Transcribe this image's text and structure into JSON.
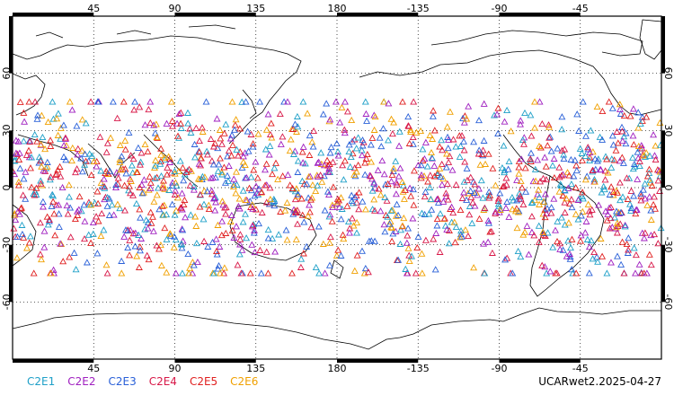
{
  "map": {
    "lon_top_labels": [
      "45",
      "90",
      "135",
      "180",
      "-135",
      "-90",
      "-45"
    ],
    "lon_bottom_labels": [
      "45",
      "90",
      "135",
      "180",
      "-135",
      "-90",
      "-45"
    ],
    "lat_left_labels": [
      "60",
      "30",
      "0",
      "-30",
      "-60"
    ],
    "lat_right_labels": [
      "60",
      "30",
      "0",
      "-30",
      "-60"
    ],
    "lon_range": [
      0,
      360
    ],
    "lat_range": [
      -90,
      90
    ],
    "observation_lat_range": [
      -45,
      45
    ],
    "marker_symbol": "open-triangle",
    "grid": "dotted"
  },
  "legend": [
    {
      "label": "C2E1",
      "color": "#1fa0c8"
    },
    {
      "label": "C2E2",
      "color": "#a020c0"
    },
    {
      "label": "C2E3",
      "color": "#2a60d8"
    },
    {
      "label": "C2E4",
      "color": "#d81848"
    },
    {
      "label": "C2E5",
      "color": "#e02020"
    },
    {
      "label": "C2E6",
      "color": "#f0a000"
    }
  ],
  "source_label": "UCARwet2.2025-04-27"
}
